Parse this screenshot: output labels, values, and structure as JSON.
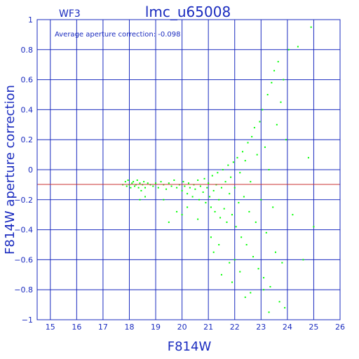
{
  "chart_data": {
    "type": "scatter",
    "title": "lmc_u65008",
    "chip": "WF3",
    "annotation": "Average aperture correction: -0.098",
    "xlabel": "F814W",
    "ylabel": "F814W aperture correction",
    "xlim": [
      14.5,
      26
    ],
    "ylim": [
      -1,
      1
    ],
    "xticks": [
      15,
      16,
      17,
      18,
      19,
      20,
      21,
      22,
      23,
      24,
      25,
      26
    ],
    "yticks": [
      1,
      0.8,
      0.6,
      0.4,
      0.2,
      0,
      -0.2,
      -0.4,
      -0.6,
      -0.8,
      -1
    ],
    "ytick_labels": [
      "1",
      "0.8",
      "0.6",
      "0.4",
      "0.2",
      "0",
      "−0.2",
      "−0.4",
      "−0.6",
      "−0.8",
      "−1"
    ],
    "grid": true,
    "mean_line": -0.098,
    "colors": {
      "frame": "#1a2bbf",
      "points": "#00ff00",
      "mean_line": "#c83030"
    },
    "series": [
      {
        "points": [
          [
            17.75,
            -0.1
          ],
          [
            17.85,
            -0.08
          ],
          [
            17.9,
            -0.11
          ],
          [
            17.95,
            -0.07
          ],
          [
            18.0,
            -0.1
          ],
          [
            18.05,
            -0.12
          ],
          [
            18.1,
            -0.09
          ],
          [
            18.15,
            -0.08
          ],
          [
            18.2,
            -0.11
          ],
          [
            18.25,
            -0.1
          ],
          [
            18.3,
            -0.07
          ],
          [
            18.35,
            -0.12
          ],
          [
            18.4,
            -0.09
          ],
          [
            18.45,
            -0.14
          ],
          [
            18.5,
            -0.1
          ],
          [
            18.55,
            -0.08
          ],
          [
            18.6,
            -0.12
          ],
          [
            18.7,
            -0.09
          ],
          [
            18.8,
            -0.1
          ],
          [
            18.9,
            -0.11
          ],
          [
            19.0,
            -0.09
          ],
          [
            19.1,
            -0.12
          ],
          [
            19.2,
            -0.08
          ],
          [
            19.3,
            -0.1
          ],
          [
            19.4,
            -0.13
          ],
          [
            19.5,
            -0.09
          ],
          [
            19.6,
            -0.11
          ],
          [
            19.7,
            -0.07
          ],
          [
            19.8,
            -0.12
          ],
          [
            19.9,
            -0.1
          ],
          [
            20.0,
            -0.14
          ],
          [
            20.05,
            -0.08
          ],
          [
            20.1,
            -0.11
          ],
          [
            20.2,
            -0.16
          ],
          [
            20.25,
            -0.09
          ],
          [
            20.3,
            -0.12
          ],
          [
            20.4,
            -0.18
          ],
          [
            20.45,
            -0.1
          ],
          [
            20.5,
            -0.13
          ],
          [
            20.6,
            -0.07
          ],
          [
            20.65,
            -0.2
          ],
          [
            20.7,
            -0.11
          ],
          [
            20.8,
            -0.15
          ],
          [
            20.85,
            -0.06
          ],
          [
            20.9,
            -0.22
          ],
          [
            20.95,
            -0.12
          ],
          [
            21.0,
            -0.09
          ],
          [
            21.05,
            -0.18
          ],
          [
            21.1,
            -0.25
          ],
          [
            21.15,
            -0.04
          ],
          [
            21.2,
            -0.14
          ],
          [
            21.25,
            -0.28
          ],
          [
            21.3,
            -0.1
          ],
          [
            21.35,
            -0.02
          ],
          [
            21.4,
            -0.2
          ],
          [
            21.45,
            -0.32
          ],
          [
            21.5,
            -0.12
          ],
          [
            21.55,
            0.0
          ],
          [
            21.6,
            -0.26
          ],
          [
            21.65,
            -0.08
          ],
          [
            21.7,
            -0.35
          ],
          [
            21.75,
            0.03
          ],
          [
            21.8,
            -0.16
          ],
          [
            21.85,
            -0.05
          ],
          [
            21.9,
            -0.3
          ],
          [
            21.95,
            0.05
          ],
          [
            22.0,
            -0.12
          ],
          [
            22.05,
            -0.38
          ],
          [
            22.1,
            0.08
          ],
          [
            22.15,
            -0.22
          ],
          [
            22.2,
            -0.02
          ],
          [
            22.25,
            -0.45
          ],
          [
            22.3,
            0.12
          ],
          [
            22.35,
            -0.18
          ],
          [
            22.4,
            0.06
          ],
          [
            22.45,
            -0.5
          ],
          [
            22.5,
            0.18
          ],
          [
            22.55,
            -0.28
          ],
          [
            22.6,
            -0.08
          ],
          [
            22.65,
            0.22
          ],
          [
            22.7,
            -0.58
          ],
          [
            22.75,
            0.28
          ],
          [
            22.8,
            -0.35
          ],
          [
            22.85,
            0.1
          ],
          [
            22.9,
            -0.66
          ],
          [
            22.95,
            0.32
          ],
          [
            23.0,
            -0.2
          ],
          [
            23.05,
            0.4
          ],
          [
            23.1,
            -0.72
          ],
          [
            23.15,
            0.15
          ],
          [
            23.2,
            -0.42
          ],
          [
            23.25,
            0.5
          ],
          [
            23.3,
            0.0
          ],
          [
            23.35,
            -0.78
          ],
          [
            23.4,
            0.58
          ],
          [
            23.45,
            -0.25
          ],
          [
            23.5,
            0.66
          ],
          [
            23.55,
            -0.55
          ],
          [
            23.6,
            0.3
          ],
          [
            23.65,
            0.72
          ],
          [
            23.7,
            -0.88
          ],
          [
            23.75,
            0.45
          ],
          [
            23.8,
            -0.62
          ],
          [
            23.85,
            0.6
          ],
          [
            23.9,
            -0.92
          ],
          [
            23.95,
            0.2
          ],
          [
            24.05,
            0.8
          ],
          [
            24.2,
            -0.3
          ],
          [
            24.4,
            0.82
          ],
          [
            24.6,
            -0.6
          ],
          [
            24.8,
            0.08
          ],
          [
            25.0,
            -0.38
          ],
          [
            24.9,
            0.95
          ],
          [
            21.1,
            -0.45
          ],
          [
            21.2,
            -0.55
          ],
          [
            21.4,
            -0.5
          ],
          [
            21.8,
            -0.62
          ],
          [
            21.9,
            -0.75
          ],
          [
            22.0,
            -0.6
          ],
          [
            21.5,
            -0.7
          ],
          [
            22.2,
            -0.68
          ],
          [
            22.4,
            -0.85
          ],
          [
            22.6,
            -0.82
          ],
          [
            23.3,
            -0.95
          ],
          [
            23.1,
            -0.8
          ],
          [
            19.5,
            -0.35
          ],
          [
            20.0,
            -0.3
          ],
          [
            20.6,
            -0.33
          ],
          [
            19.3,
            -0.2
          ],
          [
            18.4,
            -0.2
          ],
          [
            18.6,
            -0.18
          ],
          [
            19.8,
            -0.28
          ],
          [
            20.2,
            -0.25
          ]
        ]
      }
    ]
  }
}
